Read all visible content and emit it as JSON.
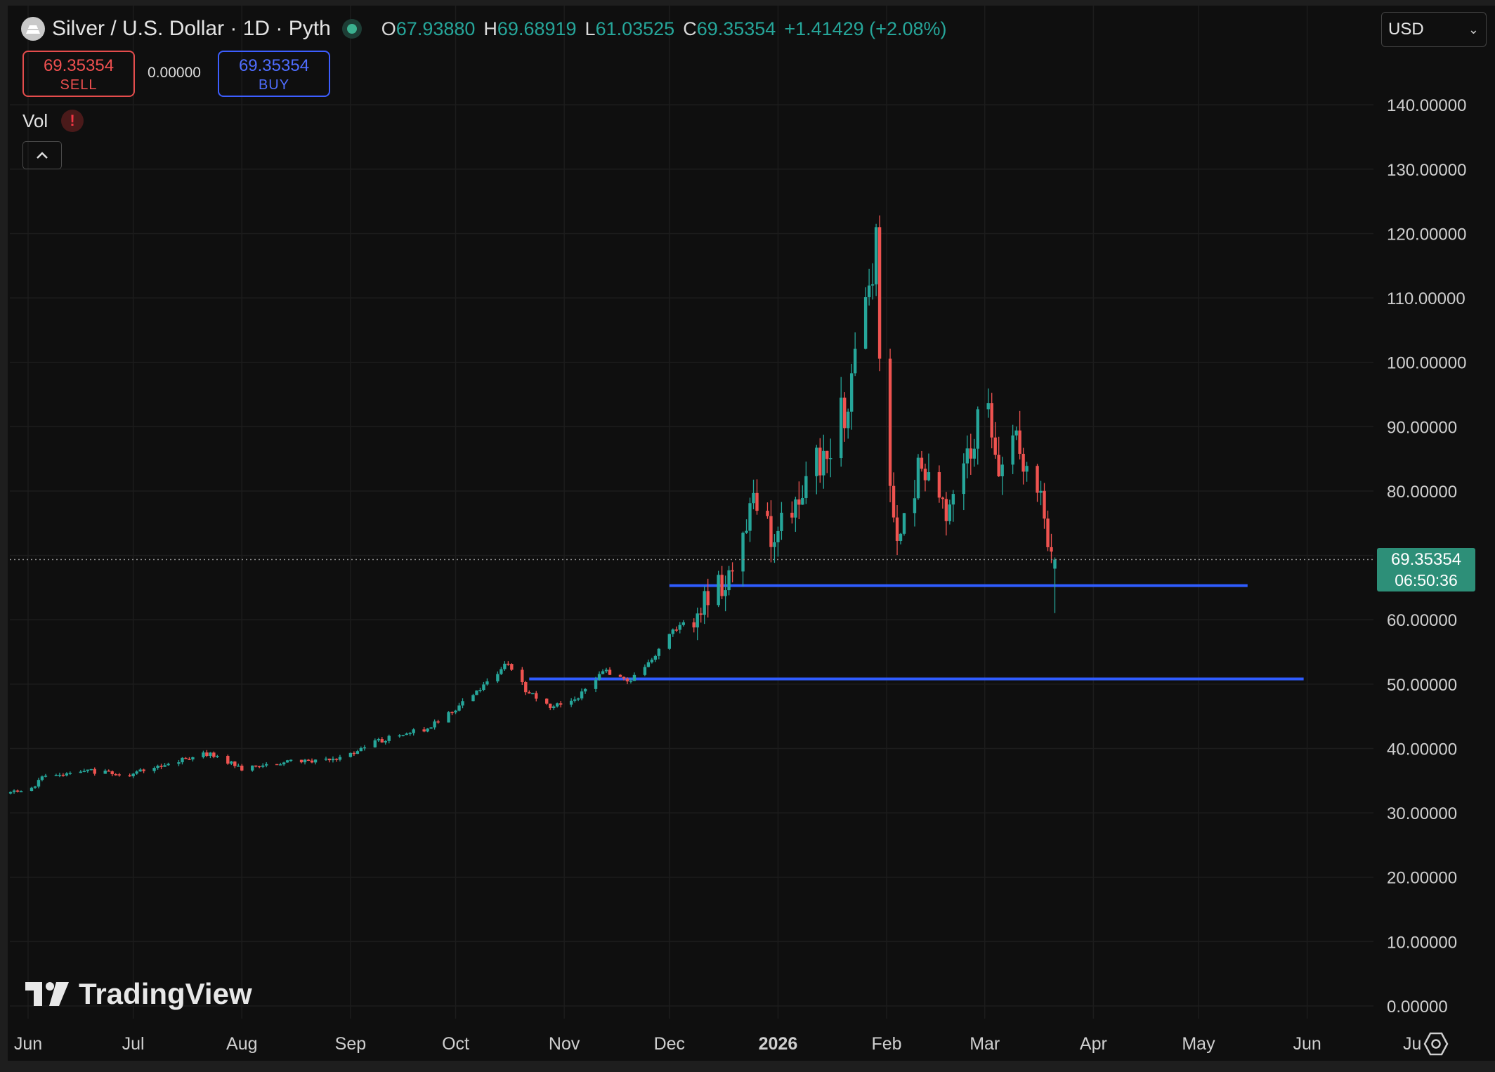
{
  "header": {
    "symbol_title": "Silver / U.S. Dollar · 1D · Pyth",
    "ohlc": [
      {
        "key": "O",
        "value": "67.93880"
      },
      {
        "key": "H",
        "value": "69.68919"
      },
      {
        "key": "L",
        "value": "61.03525"
      },
      {
        "key": "C",
        "value": "69.35354"
      }
    ],
    "change": "+1.41429 (+2.08%)"
  },
  "trade": {
    "sell_price": "69.35354",
    "sell_label": "SELL",
    "spread": "0.00000",
    "buy_price": "69.35354",
    "buy_label": "BUY"
  },
  "indicators": {
    "vol_label": "Vol",
    "vol_warning": "!"
  },
  "currency_select": {
    "value": "USD"
  },
  "last_price": {
    "price": "69.35354",
    "countdown": "06:50:36"
  },
  "brand": {
    "name": "TradingView"
  },
  "colors": {
    "up": "#26a69a",
    "down": "#ef5350",
    "hline": "#2f5cff",
    "background": "#0f0f0f",
    "grid": "#1c1c1c"
  },
  "chart_data": {
    "type": "candlestick",
    "title": "Silver / U.S. Dollar · 1D · Pyth",
    "ylim": [
      0,
      140
    ],
    "y_ticks": [
      "0.00000",
      "10.00000",
      "20.00000",
      "30.00000",
      "40.00000",
      "50.00000",
      "60.00000",
      "70.00000",
      "80.00000",
      "90.00000",
      "100.00000",
      "110.00000",
      "120.00000",
      "130.00000",
      "140.00000"
    ],
    "y_tick_values": [
      0,
      10,
      20,
      30,
      40,
      50,
      60,
      70,
      80,
      90,
      100,
      110,
      120,
      130,
      140
    ],
    "x_ticks": [
      "Jun",
      "Jul",
      "Aug",
      "Sep",
      "Oct",
      "Nov",
      "Dec",
      "2026",
      "Feb",
      "Mar",
      "Apr",
      "May",
      "Jun",
      "Ju"
    ],
    "x_tick_dates": [
      "2025-06-01",
      "2025-07-01",
      "2025-08-01",
      "2025-09-01",
      "2025-10-01",
      "2025-11-01",
      "2025-12-01",
      "2026-01-01",
      "2026-02-01",
      "2026-03-01",
      "2026-04-01",
      "2026-05-01",
      "2026-06-01",
      "2026-07-01"
    ],
    "series": [
      {
        "key_points": [
          {
            "date": "2025-05-26",
            "close": 33.0
          },
          {
            "date": "2025-06-01",
            "close": 33.5
          },
          {
            "date": "2025-06-06",
            "close": 35.8
          },
          {
            "date": "2025-06-18",
            "close": 36.5
          },
          {
            "date": "2025-06-30",
            "close": 36.0
          },
          {
            "date": "2025-07-14",
            "close": 38.2
          },
          {
            "date": "2025-07-23",
            "close": 39.3
          },
          {
            "date": "2025-08-01",
            "close": 36.8
          },
          {
            "date": "2025-08-15",
            "close": 37.9
          },
          {
            "date": "2025-08-29",
            "close": 38.5
          },
          {
            "date": "2025-09-08",
            "close": 41.0
          },
          {
            "date": "2025-09-22",
            "close": 43.0
          },
          {
            "date": "2025-10-01",
            "close": 46.0
          },
          {
            "date": "2025-10-10",
            "close": 50.5
          },
          {
            "date": "2025-10-16",
            "close": 53.5
          },
          {
            "date": "2025-10-21",
            "close": 49.0
          },
          {
            "date": "2025-10-28",
            "close": 46.5
          },
          {
            "date": "2025-11-05",
            "close": 48.0
          },
          {
            "date": "2025-11-12",
            "close": 52.0
          },
          {
            "date": "2025-11-19",
            "close": 50.5
          },
          {
            "date": "2025-11-26",
            "close": 53.5
          },
          {
            "date": "2025-12-01",
            "close": 58.0
          },
          {
            "date": "2025-12-09",
            "close": 61.0
          },
          {
            "date": "2025-12-17",
            "close": 66.0
          },
          {
            "date": "2025-12-26",
            "close": 79.0
          },
          {
            "date": "2025-12-31",
            "close": 72.0
          },
          {
            "date": "2026-01-06",
            "close": 78.0
          },
          {
            "date": "2026-01-14",
            "close": 86.0
          },
          {
            "date": "2026-01-21",
            "close": 94.0
          },
          {
            "date": "2026-01-26",
            "close": 110.0
          },
          {
            "date": "2026-01-29",
            "close": 117.0
          },
          {
            "date": "2026-01-31",
            "close": 86.0
          },
          {
            "date": "2026-02-05",
            "close": 72.0
          },
          {
            "date": "2026-02-10",
            "close": 84.0
          },
          {
            "date": "2026-02-18",
            "close": 76.0
          },
          {
            "date": "2026-02-25",
            "close": 88.0
          },
          {
            "date": "2026-03-02",
            "close": 93.0
          },
          {
            "date": "2026-03-06",
            "close": 82.0
          },
          {
            "date": "2026-03-10",
            "close": 89.0
          },
          {
            "date": "2026-03-16",
            "close": 80.0
          },
          {
            "date": "2026-03-20",
            "close": 70.0
          },
          {
            "date": "2026-03-21",
            "close": 69.35354
          }
        ]
      }
    ],
    "last_bar": {
      "date": "2026-03-21",
      "open": 67.9388,
      "high": 69.68919,
      "low": 61.03525,
      "close": 69.35354
    },
    "peak": {
      "date": "2026-01-29",
      "high": 121.5
    },
    "horizontal_lines": [
      {
        "y": 65.3,
        "from": "2025-12-01",
        "to": "2026-05-15"
      },
      {
        "y": 50.8,
        "from": "2025-10-22",
        "to": "2026-05-31"
      }
    ],
    "grid": true
  }
}
